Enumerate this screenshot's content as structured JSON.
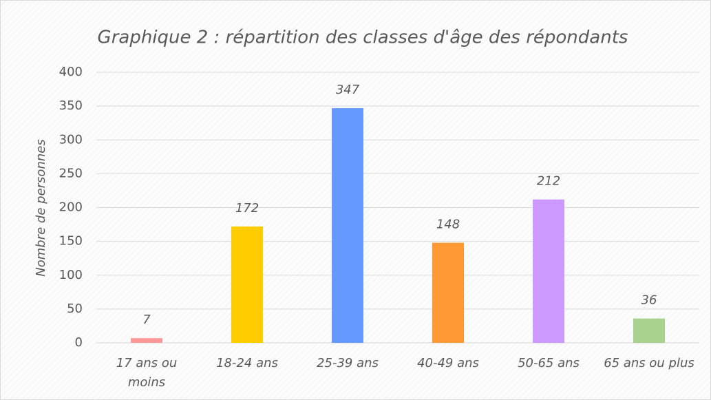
{
  "chart_data": {
    "type": "bar",
    "title": "Graphique 2 : répartition des classes d'âge des répondants",
    "y_label": "Nombre de personnes",
    "categories": [
      "17 ans ou moins",
      "18-24 ans",
      "25-39 ans",
      "40-49 ans",
      "50-65 ans",
      "65 ans ou plus"
    ],
    "values": [
      7,
      172,
      347,
      148,
      212,
      36
    ],
    "colors": [
      "#ff9999",
      "#ffcc00",
      "#6699ff",
      "#ff9933",
      "#cc99ff",
      "#a9d18e"
    ],
    "ylim": [
      0,
      400
    ],
    "yticks": [
      0,
      50,
      100,
      150,
      200,
      250,
      300,
      350,
      400
    ],
    "grid": true
  }
}
